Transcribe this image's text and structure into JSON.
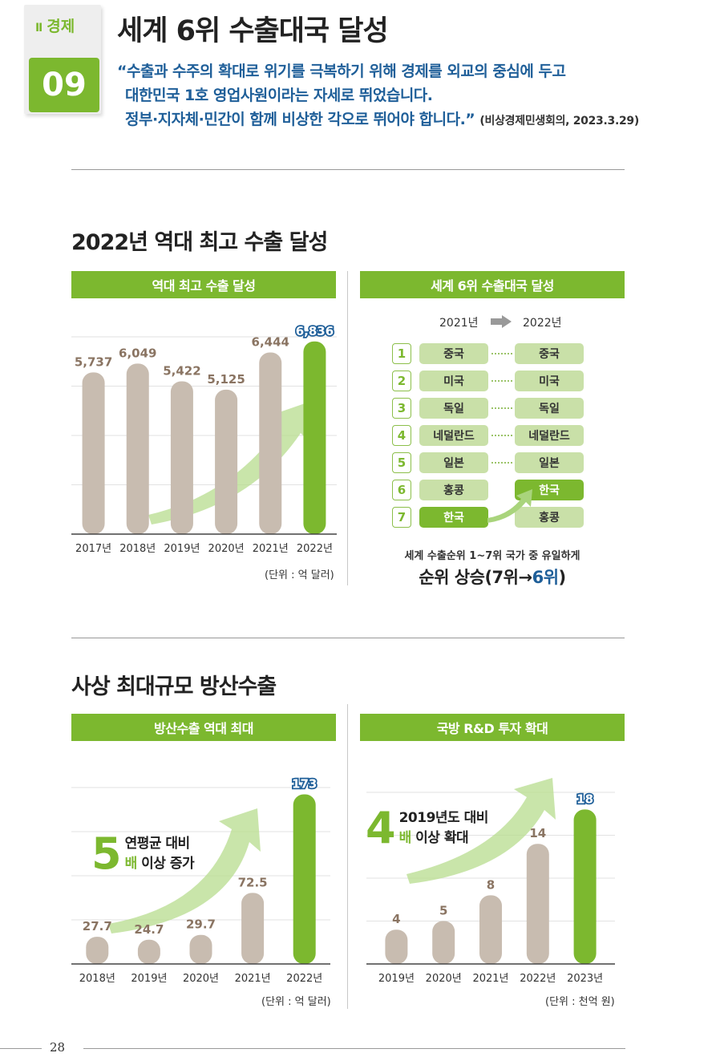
{
  "header": {
    "chapter_roman": "Ⅱ",
    "chapter_name": "경제",
    "number": "09",
    "title": "세계 6위 수출대국 달성",
    "quote_lines": [
      "“수출과 수주의 확대로 위기를 극복하기 위해 경제를 외교의 중심에 두고",
      "대한민국 1호 영업사원이라는 자세로 뛰었습니다.",
      "정부·지자체·민간이 함께 비상한 각오로 뛰어야 합니다.”"
    ],
    "quote_source": "(비상경제민생회의, 2023.3.29)"
  },
  "section1": {
    "title": "2022년 역대 최고 수출 달성",
    "left_panel": "역대 최고 수출 달성",
    "right_panel": "세계 6위 수출대국 달성",
    "unit": "(단위 : 억 달러)"
  },
  "ranking": {
    "col1": "2021년",
    "col2": "2022년",
    "numbers": [
      "1",
      "2",
      "3",
      "4",
      "5",
      "6",
      "7"
    ],
    "rank2021": [
      "중국",
      "미국",
      "독일",
      "네덜란드",
      "일본",
      "홍콩",
      "한국"
    ],
    "rank2022": [
      "중국",
      "미국",
      "독일",
      "네덜란드",
      "일본",
      "한국",
      "홍콩"
    ],
    "caption": "세계 수출순위 1~7위 국가 중 유일하게",
    "result_prefix": "순위 상승(7위→",
    "result_highlight": "6위",
    "result_suffix": ")",
    "colors": {
      "highlight": "#7cb82f",
      "normal": "#c9e0a8"
    }
  },
  "section2": {
    "title": "사상 최대규모 방산수출",
    "left_panel": "방산수출 역대 최대",
    "right_panel": "국방 R&D 투자 확대",
    "left_unit": "(단위 : 억 달러)",
    "right_unit": "(단위 : 천억 원)",
    "left_callout": {
      "big": "5",
      "line1": "연평균 대비",
      "line2_green": "배",
      "line2_rest": " 이상 증가"
    },
    "right_callout": {
      "big": "4",
      "line1": "2019년도 대비",
      "line2_green": "배",
      "line2_rest": " 이상 확대"
    }
  },
  "footer": {
    "page_number": "28"
  },
  "chart_data": [
    {
      "type": "bar",
      "categories": [
        "2017년",
        "2018년",
        "2019년",
        "2020년",
        "2021년",
        "2022년"
      ],
      "values": [
        5737,
        6049,
        5422,
        5125,
        6444,
        6836
      ],
      "value_labels": [
        "5,737",
        "6,049",
        "5,422",
        "5,125",
        "6,444",
        "6,836"
      ],
      "title": "역대 최고 수출 달성",
      "unit": "(단위 : 억 달러)",
      "ylim": [
        0,
        7000
      ],
      "highlight_index": 5,
      "colors": {
        "bar": "#c8bcb0",
        "highlight": "#7cb82f",
        "label": "#8a7462",
        "highlight_label": "#1f5f99"
      }
    },
    {
      "type": "bar",
      "categories": [
        "2018년",
        "2019년",
        "2020년",
        "2021년",
        "2022년"
      ],
      "values": [
        27.7,
        24.7,
        29.7,
        72.5,
        173
      ],
      "value_labels": [
        "27.7",
        "24.7",
        "29.7",
        "72.5",
        "173"
      ],
      "title": "방산수출 역대 최대",
      "unit": "(단위 : 억 달러)",
      "ylim": [
        0,
        180
      ],
      "highlight_index": 4,
      "colors": {
        "bar": "#c8bcb0",
        "highlight": "#7cb82f",
        "label": "#8a7462",
        "highlight_label": "#1f5f99"
      }
    },
    {
      "type": "bar",
      "categories": [
        "2019년",
        "2020년",
        "2021년",
        "2022년",
        "2023년"
      ],
      "values": [
        4,
        5,
        8,
        14,
        18
      ],
      "value_labels": [
        "4",
        "5",
        "8",
        "14",
        "18"
      ],
      "title": "국방 R&D 투자 확대",
      "unit": "(단위 : 천억 원)",
      "ylim": [
        0,
        20
      ],
      "highlight_index": 4,
      "colors": {
        "bar": "#c8bcb0",
        "highlight": "#7cb82f",
        "label": "#8a7462",
        "highlight_label": "#1f5f99"
      }
    }
  ]
}
